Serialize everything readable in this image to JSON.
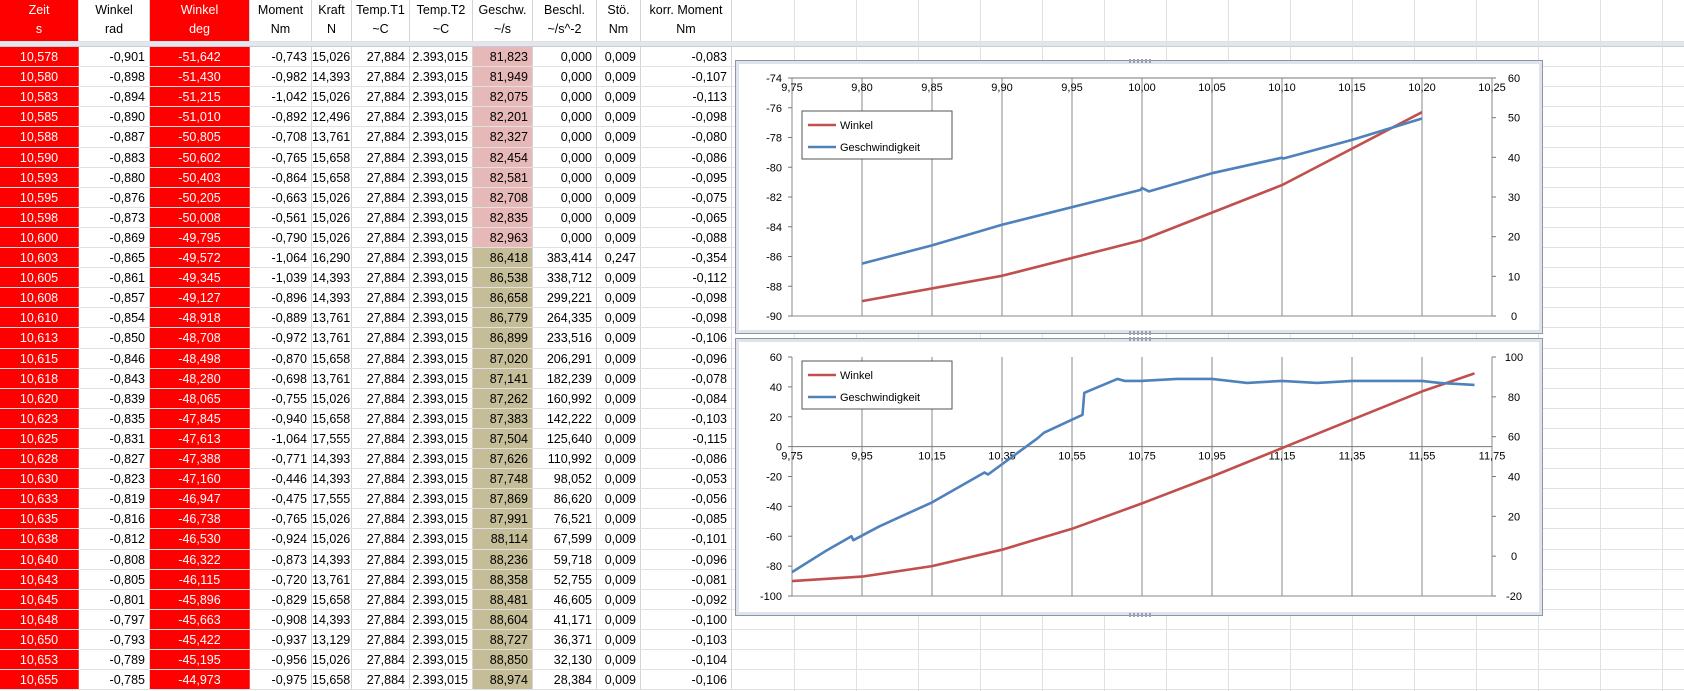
{
  "sheet": {
    "columns": [
      {
        "key": "zeit",
        "title": "Zeit",
        "unit": "s",
        "width": 79,
        "hdr": "#ff0000",
        "col": "#ff0000",
        "fg": "#ffffff"
      },
      {
        "key": "winkel_rad",
        "title": "Winkel",
        "unit": "rad",
        "width": 71,
        "hdr": "#ffffff",
        "col": "#ffffff",
        "fg": "#000000"
      },
      {
        "key": "winkel_deg",
        "title": "Winkel",
        "unit": "deg",
        "width": 100,
        "hdr": "#ff0000",
        "col": "#ff0000",
        "fg": "#ffffff"
      },
      {
        "key": "moment",
        "title": "Moment",
        "unit": "Nm",
        "width": 62,
        "hdr": "#ffffff",
        "col": "#ffffff",
        "fg": "#000000"
      },
      {
        "key": "kraft",
        "title": "Kraft",
        "unit": "N",
        "width": 40,
        "hdr": "#ffffff",
        "col": "#ffffff",
        "fg": "#000000"
      },
      {
        "key": "t1",
        "title": "Temp.T1",
        "unit": "~C",
        "width": 58,
        "hdr": "#ffffff",
        "col": "#ffffff",
        "fg": "#000000"
      },
      {
        "key": "t2",
        "title": "Temp.T2",
        "unit": "~C",
        "width": 63,
        "hdr": "#ffffff",
        "col": "#ffffff",
        "fg": "#000000"
      },
      {
        "key": "geschw",
        "title": "Geschw.",
        "unit": "~/s",
        "width": 60,
        "hdr": "#ffffff",
        "col": "#c4bd97",
        "fg": "#000000"
      },
      {
        "key": "beschl",
        "title": "Beschl.",
        "unit": "~/s^-2",
        "width": 64,
        "hdr": "#ffffff",
        "col": "#ffffff",
        "fg": "#000000"
      },
      {
        "key": "stoe",
        "title": "Stö.",
        "unit": "Nm",
        "width": 44,
        "hdr": "#ffffff",
        "col": "#ffffff",
        "fg": "#000000"
      },
      {
        "key": "korr",
        "title": "korr. Moment",
        "unit": "Nm",
        "width": 91,
        "hdr": "#ffffff",
        "col": "#ffffff",
        "fg": "#000000"
      }
    ],
    "geschw_highlight_first_rows": 10,
    "geschw_highlight_color": "#e6b8b7",
    "rows": [
      [
        "10,578",
        "-0,901",
        "-51,642",
        "-0,743",
        "15,026",
        "27,884",
        "2.393,015",
        "81,823",
        "0,000",
        "0,009",
        "-0,083"
      ],
      [
        "10,580",
        "-0,898",
        "-51,430",
        "-0,982",
        "14,393",
        "27,884",
        "2.393,015",
        "81,949",
        "0,000",
        "0,009",
        "-0,107"
      ],
      [
        "10,583",
        "-0,894",
        "-51,215",
        "-1,042",
        "15,026",
        "27,884",
        "2.393,015",
        "82,075",
        "0,000",
        "0,009",
        "-0,113"
      ],
      [
        "10,585",
        "-0,890",
        "-51,010",
        "-0,892",
        "12,496",
        "27,884",
        "2.393,015",
        "82,201",
        "0,000",
        "0,009",
        "-0,098"
      ],
      [
        "10,588",
        "-0,887",
        "-50,805",
        "-0,708",
        "13,761",
        "27,884",
        "2.393,015",
        "82,327",
        "0,000",
        "0,009",
        "-0,080"
      ],
      [
        "10,590",
        "-0,883",
        "-50,602",
        "-0,765",
        "15,658",
        "27,884",
        "2.393,015",
        "82,454",
        "0,000",
        "0,009",
        "-0,086"
      ],
      [
        "10,593",
        "-0,880",
        "-50,403",
        "-0,864",
        "15,658",
        "27,884",
        "2.393,015",
        "82,581",
        "0,000",
        "0,009",
        "-0,095"
      ],
      [
        "10,595",
        "-0,876",
        "-50,205",
        "-0,663",
        "15,026",
        "27,884",
        "2.393,015",
        "82,708",
        "0,000",
        "0,009",
        "-0,075"
      ],
      [
        "10,598",
        "-0,873",
        "-50,008",
        "-0,561",
        "15,026",
        "27,884",
        "2.393,015",
        "82,835",
        "0,000",
        "0,009",
        "-0,065"
      ],
      [
        "10,600",
        "-0,869",
        "-49,795",
        "-0,790",
        "15,026",
        "27,884",
        "2.393,015",
        "82,963",
        "0,000",
        "0,009",
        "-0,088"
      ],
      [
        "10,603",
        "-0,865",
        "-49,572",
        "-1,064",
        "16,290",
        "27,884",
        "2.393,015",
        "86,418",
        "383,414",
        "0,247",
        "-0,354"
      ],
      [
        "10,605",
        "-0,861",
        "-49,345",
        "-1,039",
        "14,393",
        "27,884",
        "2.393,015",
        "86,538",
        "338,712",
        "0,009",
        "-0,112"
      ],
      [
        "10,608",
        "-0,857",
        "-49,127",
        "-0,896",
        "14,393",
        "27,884",
        "2.393,015",
        "86,658",
        "299,221",
        "0,009",
        "-0,098"
      ],
      [
        "10,610",
        "-0,854",
        "-48,918",
        "-0,889",
        "13,761",
        "27,884",
        "2.393,015",
        "86,779",
        "264,335",
        "0,009",
        "-0,098"
      ],
      [
        "10,613",
        "-0,850",
        "-48,708",
        "-0,972",
        "13,761",
        "27,884",
        "2.393,015",
        "86,899",
        "233,516",
        "0,009",
        "-0,106"
      ],
      [
        "10,615",
        "-0,846",
        "-48,498",
        "-0,870",
        "15,658",
        "27,884",
        "2.393,015",
        "87,020",
        "206,291",
        "0,009",
        "-0,096"
      ],
      [
        "10,618",
        "-0,843",
        "-48,280",
        "-0,698",
        "13,761",
        "27,884",
        "2.393,015",
        "87,141",
        "182,239",
        "0,009",
        "-0,078"
      ],
      [
        "10,620",
        "-0,839",
        "-48,065",
        "-0,755",
        "15,026",
        "27,884",
        "2.393,015",
        "87,262",
        "160,992",
        "0,009",
        "-0,084"
      ],
      [
        "10,623",
        "-0,835",
        "-47,845",
        "-0,940",
        "15,658",
        "27,884",
        "2.393,015",
        "87,383",
        "142,222",
        "0,009",
        "-0,103"
      ],
      [
        "10,625",
        "-0,831",
        "-47,613",
        "-1,064",
        "17,555",
        "27,884",
        "2.393,015",
        "87,504",
        "125,640",
        "0,009",
        "-0,115"
      ],
      [
        "10,628",
        "-0,827",
        "-47,388",
        "-0,771",
        "14,393",
        "27,884",
        "2.393,015",
        "87,626",
        "110,992",
        "0,009",
        "-0,086"
      ],
      [
        "10,630",
        "-0,823",
        "-47,160",
        "-0,446",
        "14,393",
        "27,884",
        "2.393,015",
        "87,748",
        "98,052",
        "0,009",
        "-0,053"
      ],
      [
        "10,633",
        "-0,819",
        "-46,947",
        "-0,475",
        "17,555",
        "27,884",
        "2.393,015",
        "87,869",
        "86,620",
        "0,009",
        "-0,056"
      ],
      [
        "10,635",
        "-0,816",
        "-46,738",
        "-0,765",
        "15,026",
        "27,884",
        "2.393,015",
        "87,991",
        "76,521",
        "0,009",
        "-0,085"
      ],
      [
        "10,638",
        "-0,812",
        "-46,530",
        "-0,924",
        "15,026",
        "27,884",
        "2.393,015",
        "88,114",
        "67,599",
        "0,009",
        "-0,101"
      ],
      [
        "10,640",
        "-0,808",
        "-46,322",
        "-0,873",
        "14,393",
        "27,884",
        "2.393,015",
        "88,236",
        "59,718",
        "0,009",
        "-0,096"
      ],
      [
        "10,643",
        "-0,805",
        "-46,115",
        "-0,720",
        "13,761",
        "27,884",
        "2.393,015",
        "88,358",
        "52,755",
        "0,009",
        "-0,081"
      ],
      [
        "10,645",
        "-0,801",
        "-45,896",
        "-0,829",
        "15,658",
        "27,884",
        "2.393,015",
        "88,481",
        "46,605",
        "0,009",
        "-0,092"
      ],
      [
        "10,648",
        "-0,797",
        "-45,663",
        "-0,908",
        "14,393",
        "27,884",
        "2.393,015",
        "88,604",
        "41,171",
        "0,009",
        "-0,100"
      ],
      [
        "10,650",
        "-0,793",
        "-45,422",
        "-0,937",
        "13,129",
        "27,884",
        "2.393,015",
        "88,727",
        "36,371",
        "0,009",
        "-0,103"
      ],
      [
        "10,653",
        "-0,789",
        "-45,195",
        "-0,956",
        "15,026",
        "27,884",
        "2.393,015",
        "88,850",
        "32,130",
        "0,009",
        "-0,104"
      ],
      [
        "10,655",
        "-0,785",
        "-44,973",
        "-0,975",
        "15,658",
        "27,884",
        "2.393,015",
        "88,974",
        "28,384",
        "0,009",
        "-0,106"
      ]
    ]
  },
  "chart_data": [
    {
      "type": "line",
      "x_ticks": [
        "9,75",
        "9,80",
        "9,85",
        "9,90",
        "9,95",
        "10,00",
        "10,05",
        "10,10",
        "10,15",
        "10,20",
        "10,25"
      ],
      "xlim": [
        9.75,
        10.25
      ],
      "y_ticks": [
        "-74",
        "-76",
        "-78",
        "-80",
        "-82",
        "-84",
        "-86",
        "-88",
        "-90"
      ],
      "ylim": [
        -90,
        -74
      ],
      "y2_ticks": [
        "60",
        "50",
        "40",
        "30",
        "20",
        "10",
        "0"
      ],
      "y2lim": [
        0,
        60
      ],
      "x_axis_at_top": true,
      "grid": "vertical",
      "legend_placement": "top-left",
      "series": [
        {
          "name": "Winkel",
          "axis": "left",
          "color": "#c0504d",
          "x": [
            9.8,
            9.9,
            10.0,
            10.1,
            10.2
          ],
          "y": [
            -89.0,
            -87.3,
            -84.9,
            -81.2,
            -76.3
          ]
        },
        {
          "name": "Geschwindigkeit",
          "axis": "right",
          "color": "#4f81bd",
          "x": [
            9.8,
            9.85,
            9.9,
            9.999,
            10.0,
            10.005,
            10.05,
            10.1,
            10.101,
            10.15,
            10.2
          ],
          "y": [
            13.2,
            17.8,
            23.0,
            31.8,
            32.3,
            31.4,
            36.0,
            39.9,
            39.7,
            44.4,
            49.8
          ]
        }
      ]
    },
    {
      "type": "line",
      "x_ticks": [
        "9,75",
        "9,95",
        "10,15",
        "10,35",
        "10,55",
        "10,75",
        "10,95",
        "11,15",
        "11,35",
        "11,55",
        "11,75"
      ],
      "xlim": [
        9.75,
        11.75
      ],
      "y_ticks": [
        "60",
        "40",
        "20",
        "0",
        "-20",
        "-40",
        "-60",
        "-80",
        "-100"
      ],
      "ylim": [
        -100,
        60
      ],
      "y2_ticks": [
        "100",
        "80",
        "60",
        "40",
        "20",
        "0",
        "-20"
      ],
      "y2lim": [
        -20,
        100
      ],
      "x_axis_at_zero": true,
      "grid": "vertical",
      "legend_placement": "top-left",
      "series": [
        {
          "name": "Winkel",
          "axis": "left",
          "color": "#c0504d",
          "x": [
            9.75,
            9.95,
            10.15,
            10.35,
            10.55,
            10.75,
            10.95,
            11.15,
            11.35,
            11.55,
            11.7
          ],
          "y": [
            -90,
            -87,
            -80,
            -69,
            -55,
            -38,
            -20,
            -1,
            18,
            37,
            49
          ]
        },
        {
          "name": "Geschwindigkeit",
          "axis": "right",
          "color": "#4f81bd",
          "x": [
            9.75,
            9.85,
            9.92,
            9.925,
            10.0,
            10.15,
            10.3,
            10.31,
            10.45,
            10.47,
            10.58,
            10.585,
            10.68,
            10.7,
            10.75,
            10.85,
            10.95,
            11.05,
            11.15,
            11.25,
            11.35,
            11.45,
            11.55,
            11.6,
            11.7
          ],
          "y": [
            -8,
            3,
            10,
            8,
            15,
            27,
            42,
            41,
            59,
            62,
            71,
            82,
            89,
            88,
            88,
            89,
            89,
            87,
            88,
            87,
            88,
            88,
            88,
            87,
            86
          ]
        }
      ]
    }
  ]
}
